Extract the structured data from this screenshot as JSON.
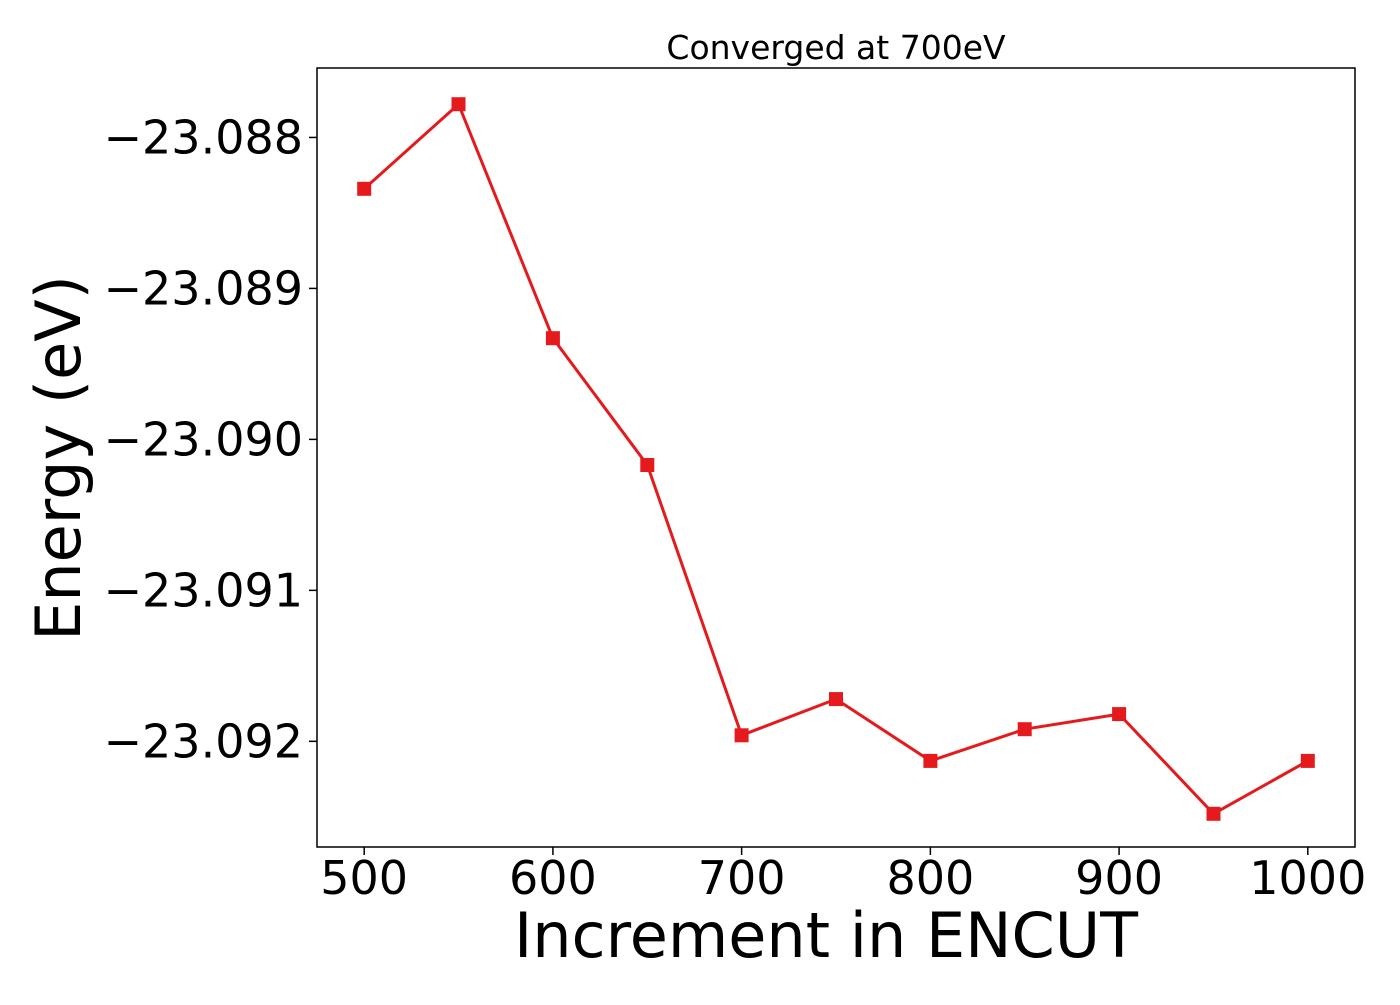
{
  "chart_data": {
    "type": "line",
    "title": "Converged at 700eV",
    "xlabel": "Increment in ENCUT",
    "ylabel": "Energy (eV)",
    "xlim": [
      475,
      1025
    ],
    "ylim": [
      -23.0927,
      -23.08754
    ],
    "xticks": [
      500,
      600,
      700,
      800,
      900,
      1000
    ],
    "xtick_labels": [
      "500",
      "600",
      "700",
      "800",
      "900",
      "1000"
    ],
    "yticks": [
      -23.088,
      -23.089,
      -23.09,
      -23.091,
      -23.092
    ],
    "ytick_labels": [
      "−23.088",
      "−23.089",
      "−23.090",
      "−23.091",
      "−23.092"
    ],
    "grid": false,
    "legend": "none",
    "series": [
      {
        "color": "#e41a1c",
        "marker": "square",
        "x": [
          500,
          550,
          600,
          650,
          700,
          750,
          800,
          850,
          900,
          950,
          1000
        ],
        "y": [
          -23.08834,
          -23.08778,
          -23.08933,
          -23.09017,
          -23.09196,
          -23.09172,
          -23.09213,
          -23.09192,
          -23.09182,
          -23.09248,
          -23.09213
        ]
      }
    ]
  }
}
